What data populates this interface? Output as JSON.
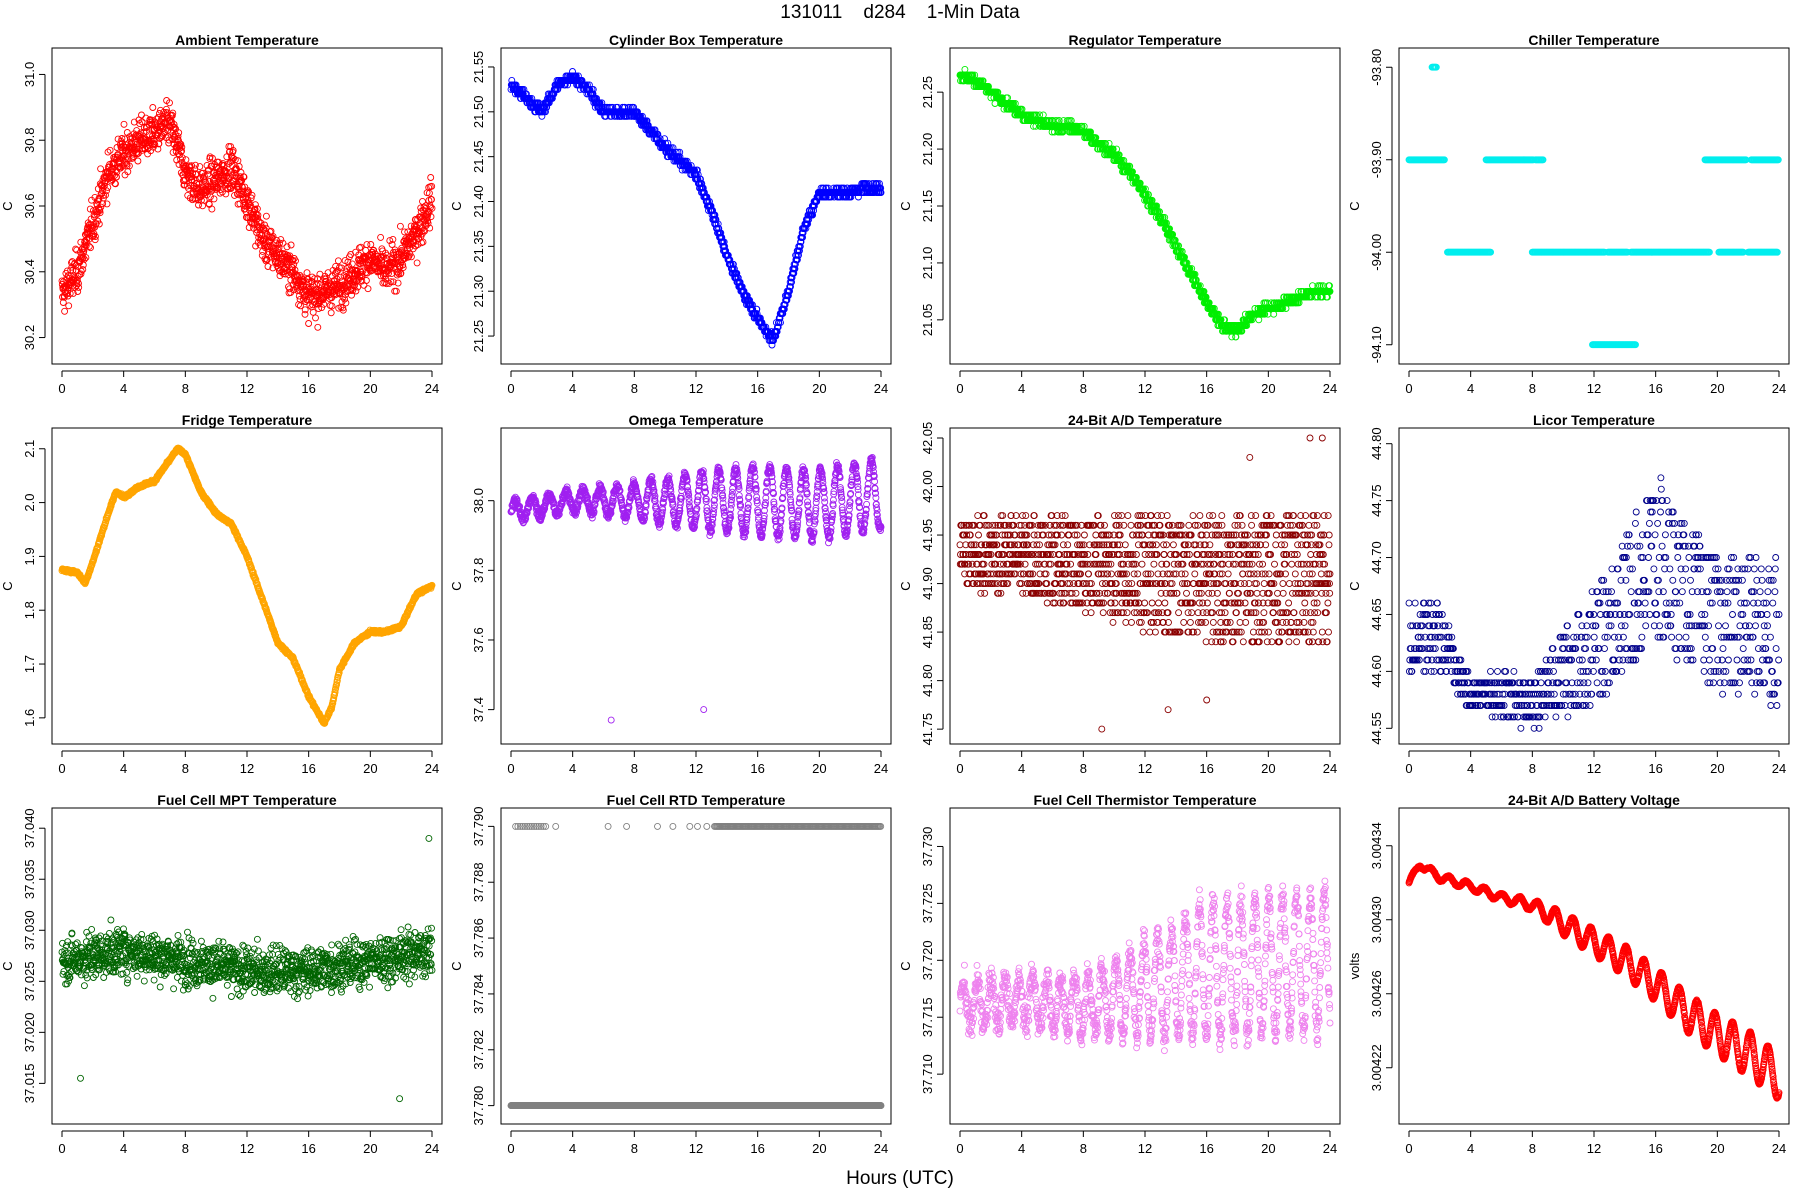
{
  "figure": {
    "title": "131011    d284    1-Min Data",
    "xlabel": "Hours (UTC)"
  },
  "chart_data": [
    {
      "type": "scatter",
      "title": "Ambient Temperature",
      "ylabel": "C",
      "color": "#ff0000",
      "xlim": [
        0,
        24
      ],
      "ylim": [
        30.15,
        31.05
      ],
      "xticks": [
        0,
        4,
        8,
        12,
        16,
        20,
        24
      ],
      "yticks": [
        "30.2",
        "30.4",
        "30.6",
        "30.8",
        "31.0"
      ],
      "style": "noisy",
      "npts": 1440,
      "noise": 0.09,
      "x": [
        0,
        1,
        2,
        3,
        4,
        5,
        6,
        7,
        8,
        9,
        10,
        11,
        12,
        13,
        14,
        15,
        16,
        17,
        18,
        19,
        20,
        21,
        22,
        23,
        24
      ],
      "y": [
        30.33,
        30.4,
        30.55,
        30.7,
        30.76,
        30.8,
        30.82,
        30.85,
        30.7,
        30.65,
        30.68,
        30.72,
        30.62,
        30.5,
        30.45,
        30.4,
        30.32,
        30.34,
        30.36,
        30.4,
        30.44,
        30.4,
        30.44,
        30.52,
        30.62
      ]
    },
    {
      "type": "scatter",
      "title": "Cylinder Box Temperature",
      "ylabel": "C",
      "color": "#0000ff",
      "xlim": [
        0,
        24
      ],
      "ylim": [
        21.23,
        21.56
      ],
      "xticks": [
        0,
        4,
        8,
        12,
        16,
        20,
        24
      ],
      "yticks": [
        "21.25",
        "21.30",
        "21.35",
        "21.40",
        "21.45",
        "21.50",
        "21.55"
      ],
      "style": "steps",
      "npts": 1440,
      "noise": 0.004,
      "step": 0.005,
      "x": [
        0,
        1,
        2,
        3,
        4,
        5,
        6,
        7,
        8,
        9,
        10,
        11,
        12,
        13,
        14,
        15,
        16,
        17,
        18,
        19,
        20,
        21,
        22,
        23,
        24
      ],
      "y": [
        21.53,
        21.515,
        21.5,
        21.53,
        21.54,
        21.525,
        21.5,
        21.5,
        21.5,
        21.48,
        21.46,
        21.445,
        21.43,
        21.39,
        21.34,
        21.3,
        21.27,
        21.245,
        21.3,
        21.37,
        21.41,
        21.41,
        21.41,
        21.415,
        21.415
      ]
    },
    {
      "type": "scatter",
      "title": "Regulator Temperature",
      "ylabel": "C",
      "color": "#00ee00",
      "xlim": [
        0,
        24
      ],
      "ylim": [
        21.02,
        21.28
      ],
      "xticks": [
        0,
        4,
        8,
        12,
        16,
        20,
        24
      ],
      "yticks": [
        "21.05",
        "21.10",
        "21.15",
        "21.20",
        "21.25"
      ],
      "style": "steps",
      "npts": 1440,
      "noise": 0.003,
      "step": 0.005,
      "x": [
        0,
        1,
        2,
        3,
        4,
        5,
        6,
        7,
        8,
        9,
        10,
        11,
        12,
        13,
        14,
        15,
        16,
        17,
        18,
        19,
        20,
        21,
        22,
        23,
        24
      ],
      "y": [
        21.265,
        21.26,
        21.25,
        21.24,
        21.23,
        21.225,
        21.22,
        21.22,
        21.215,
        21.205,
        21.195,
        21.18,
        21.16,
        21.14,
        21.115,
        21.09,
        21.065,
        21.045,
        21.04,
        21.055,
        21.06,
        21.065,
        21.07,
        21.075,
        21.075
      ]
    },
    {
      "type": "scatter",
      "title": "Chiller Temperature",
      "ylabel": "C",
      "color": "#00eeee",
      "xlim": [
        0,
        24
      ],
      "ylim": [
        -94.11,
        -93.79
      ],
      "xticks": [
        0,
        4,
        8,
        12,
        16,
        20,
        24
      ],
      "yticks": [
        "-94.10",
        "-94.00",
        "-93.90",
        "-93.80"
      ],
      "style": "segments",
      "segments": [
        [
          1.5,
          1.8,
          -93.8
        ],
        [
          0,
          2.3,
          -93.9
        ],
        [
          2.5,
          5.3,
          -94.0
        ],
        [
          5,
          8.1,
          -93.9
        ],
        [
          8.2,
          8.7,
          -93.9
        ],
        [
          8,
          12.7,
          -94.0
        ],
        [
          12.9,
          14.2,
          -94.0
        ],
        [
          11.9,
          14.7,
          -94.1
        ],
        [
          14.4,
          19.5,
          -94.0
        ],
        [
          19.2,
          21.9,
          -93.9
        ],
        [
          20.1,
          21.7,
          -94.0
        ],
        [
          22,
          23.9,
          -94.0
        ],
        [
          22.2,
          24,
          -93.9
        ]
      ]
    },
    {
      "type": "scatter",
      "title": "Fridge Temperature",
      "ylabel": "C",
      "color": "#ffa500",
      "xlim": [
        0,
        24
      ],
      "ylim": [
        1.57,
        2.12
      ],
      "xticks": [
        0,
        4,
        8,
        12,
        16,
        20,
        24
      ],
      "yticks": [
        "1.6",
        "1.7",
        "1.8",
        "1.9",
        "2.0",
        "2.1"
      ],
      "style": "smooth",
      "npts": 1440,
      "noise": 0.004,
      "x": [
        0,
        1,
        1.5,
        2,
        3,
        3.5,
        4,
        5,
        6,
        7,
        7.5,
        8,
        9,
        10,
        11,
        12,
        13,
        14,
        15,
        16,
        17,
        17.5,
        18,
        19,
        20,
        21,
        22,
        23,
        24
      ],
      "y": [
        1.875,
        1.87,
        1.85,
        1.89,
        1.98,
        2.02,
        2.01,
        2.03,
        2.04,
        2.08,
        2.1,
        2.09,
        2.02,
        1.98,
        1.96,
        1.9,
        1.82,
        1.74,
        1.71,
        1.64,
        1.59,
        1.62,
        1.69,
        1.74,
        1.76,
        1.76,
        1.77,
        1.83,
        1.845
      ]
    },
    {
      "type": "scatter",
      "title": "Omega Temperature",
      "ylabel": "C",
      "color": "#a020f0",
      "xlim": [
        0,
        24
      ],
      "ylim": [
        37.33,
        38.18
      ],
      "xticks": [
        0,
        4,
        8,
        12,
        16,
        20,
        24
      ],
      "yticks": [
        "37.4",
        "37.6",
        "37.8",
        "38.0"
      ],
      "style": "osc",
      "npts": 1440,
      "noise": 0.015,
      "x": [
        0,
        4,
        8,
        12,
        16,
        20,
        24
      ],
      "y": [
        37.97,
        38.0,
        38.0,
        38.0,
        38.0,
        37.99,
        38.02
      ],
      "amp": [
        0.03,
        0.03,
        0.05,
        0.08,
        0.1,
        0.1,
        0.1
      ],
      "period": 1.1,
      "outliers": [
        [
          6.5,
          37.37
        ],
        [
          12.5,
          37.4
        ]
      ]
    },
    {
      "type": "scatter",
      "title": "24-Bit A/D Temperature",
      "ylabel": "C",
      "color": "#8b0000",
      "xlim": [
        0,
        24
      ],
      "ylim": [
        41.745,
        42.05
      ],
      "xticks": [
        0,
        4,
        8,
        12,
        16,
        20,
        24
      ],
      "yticks": [
        "41.75",
        "41.80",
        "41.85",
        "41.90",
        "41.95",
        "42.00",
        "42.05"
      ],
      "style": "quant",
      "npts": 1440,
      "step": 0.01,
      "x": [
        0,
        4,
        8,
        12,
        16,
        20,
        24
      ],
      "y": [
        41.93,
        41.93,
        41.92,
        41.91,
        41.905,
        41.905,
        41.905
      ],
      "spread": [
        0.035,
        0.04,
        0.045,
        0.06,
        0.065,
        0.065,
        0.07
      ],
      "outliers": [
        [
          9.2,
          41.75
        ],
        [
          16,
          41.78
        ],
        [
          13.5,
          41.77
        ],
        [
          23.5,
          42.05
        ],
        [
          22.7,
          42.05
        ],
        [
          18.8,
          42.03
        ]
      ]
    },
    {
      "type": "scatter",
      "title": "Licor Temperature",
      "ylabel": "C",
      "color": "#00008b",
      "xlim": [
        0,
        24
      ],
      "ylim": [
        44.545,
        44.805
      ],
      "xticks": [
        0,
        4,
        8,
        12,
        16,
        20,
        24
      ],
      "yticks": [
        "44.55",
        "44.60",
        "44.65",
        "44.70",
        "44.75",
        "44.80"
      ],
      "style": "quant",
      "npts": 900,
      "step": 0.01,
      "x": [
        0,
        2,
        4,
        6,
        8,
        10,
        12,
        14,
        16,
        18,
        20,
        22,
        24
      ],
      "y": [
        44.63,
        44.63,
        44.58,
        44.58,
        44.57,
        44.6,
        44.62,
        44.66,
        44.7,
        44.67,
        44.64,
        44.64,
        44.64
      ],
      "spread": [
        0.03,
        0.03,
        0.01,
        0.02,
        0.02,
        0.04,
        0.05,
        0.06,
        0.08,
        0.06,
        0.06,
        0.06,
        0.07
      ]
    },
    {
      "type": "scatter",
      "title": "Fuel Cell MPT Temperature",
      "ylabel": "C",
      "color": "#006400",
      "xlim": [
        0,
        24
      ],
      "ylim": [
        37.012,
        37.041
      ],
      "xticks": [
        0,
        4,
        8,
        12,
        16,
        20,
        24
      ],
      "yticks": [
        "37.015",
        "37.020",
        "37.025",
        "37.030",
        "37.035",
        "37.040"
      ],
      "style": "noisy",
      "npts": 1440,
      "noise": 0.0032,
      "x": [
        0,
        4,
        8,
        12,
        16,
        20,
        24
      ],
      "y": [
        37.027,
        37.028,
        37.027,
        37.026,
        37.026,
        37.027,
        37.028
      ],
      "outliers": [
        [
          1.2,
          37.0155
        ],
        [
          21.9,
          37.0135
        ],
        [
          23.8,
          37.039
        ]
      ]
    },
    {
      "type": "scatter",
      "title": "Fuel Cell RTD Temperature",
      "ylabel": "C",
      "color": "#808080",
      "xlim": [
        0,
        24
      ],
      "ylim": [
        37.7797,
        37.7903
      ],
      "xticks": [
        0,
        4,
        8,
        12,
        16,
        20,
        24
      ],
      "yticks": [
        "37.780",
        "37.782",
        "37.784",
        "37.786",
        "37.788",
        "37.790"
      ],
      "style": "twolevel",
      "npts": 1440,
      "low": 37.78,
      "high": 37.79
    },
    {
      "type": "scatter",
      "title": "Fuel Cell Thermistor Temperature",
      "ylabel": "C",
      "color": "#ee82ee",
      "xlim": [
        0,
        24
      ],
      "ylim": [
        37.7065,
        37.7325
      ],
      "xticks": [
        0,
        4,
        8,
        12,
        16,
        20,
        24
      ],
      "yticks": [
        "37.710",
        "37.715",
        "37.720",
        "37.725",
        "37.730"
      ],
      "style": "osc",
      "npts": 1440,
      "noise": 0.0015,
      "x": [
        0,
        4,
        8,
        12,
        16,
        20,
        24
      ],
      "y": [
        37.716,
        37.7165,
        37.716,
        37.7175,
        37.719,
        37.7195,
        37.72
      ],
      "amp": [
        0.002,
        0.002,
        0.0025,
        0.004,
        0.006,
        0.006,
        0.006
      ],
      "period": 0.9
    },
    {
      "type": "scatter",
      "title": "24-Bit A/D Battery Voltage",
      "ylabel": "volts",
      "color": "#ff0000",
      "xlim": [
        0,
        24
      ],
      "ylim": [
        3.004195,
        3.004355
      ],
      "xticks": [
        0,
        4,
        8,
        12,
        16,
        20,
        24
      ],
      "yticks": [
        "3.00422",
        "3.00426",
        "3.00430",
        "3.00434"
      ],
      "style": "batt",
      "npts": 1440,
      "noise": 3e-07,
      "x": [
        0,
        0.7,
        2,
        4,
        6,
        8,
        10,
        12,
        14,
        16,
        18,
        20,
        22,
        24
      ],
      "y": [
        3.00432,
        3.00433,
        3.004323,
        3.004318,
        3.004312,
        3.004308,
        3.004298,
        3.004288,
        3.004278,
        3.004265,
        3.00425,
        3.004238,
        3.004228,
        3.004215
      ],
      "amp": [
        1.5e-06,
        1.5e-06,
        2e-06,
        2e-06,
        2e-06,
        3e-06,
        6e-06,
        7e-06,
        8e-06,
        9e-06,
        1e-05,
        1.1e-05,
        1.2e-05,
        1.2e-05
      ],
      "period": 1.15
    }
  ]
}
